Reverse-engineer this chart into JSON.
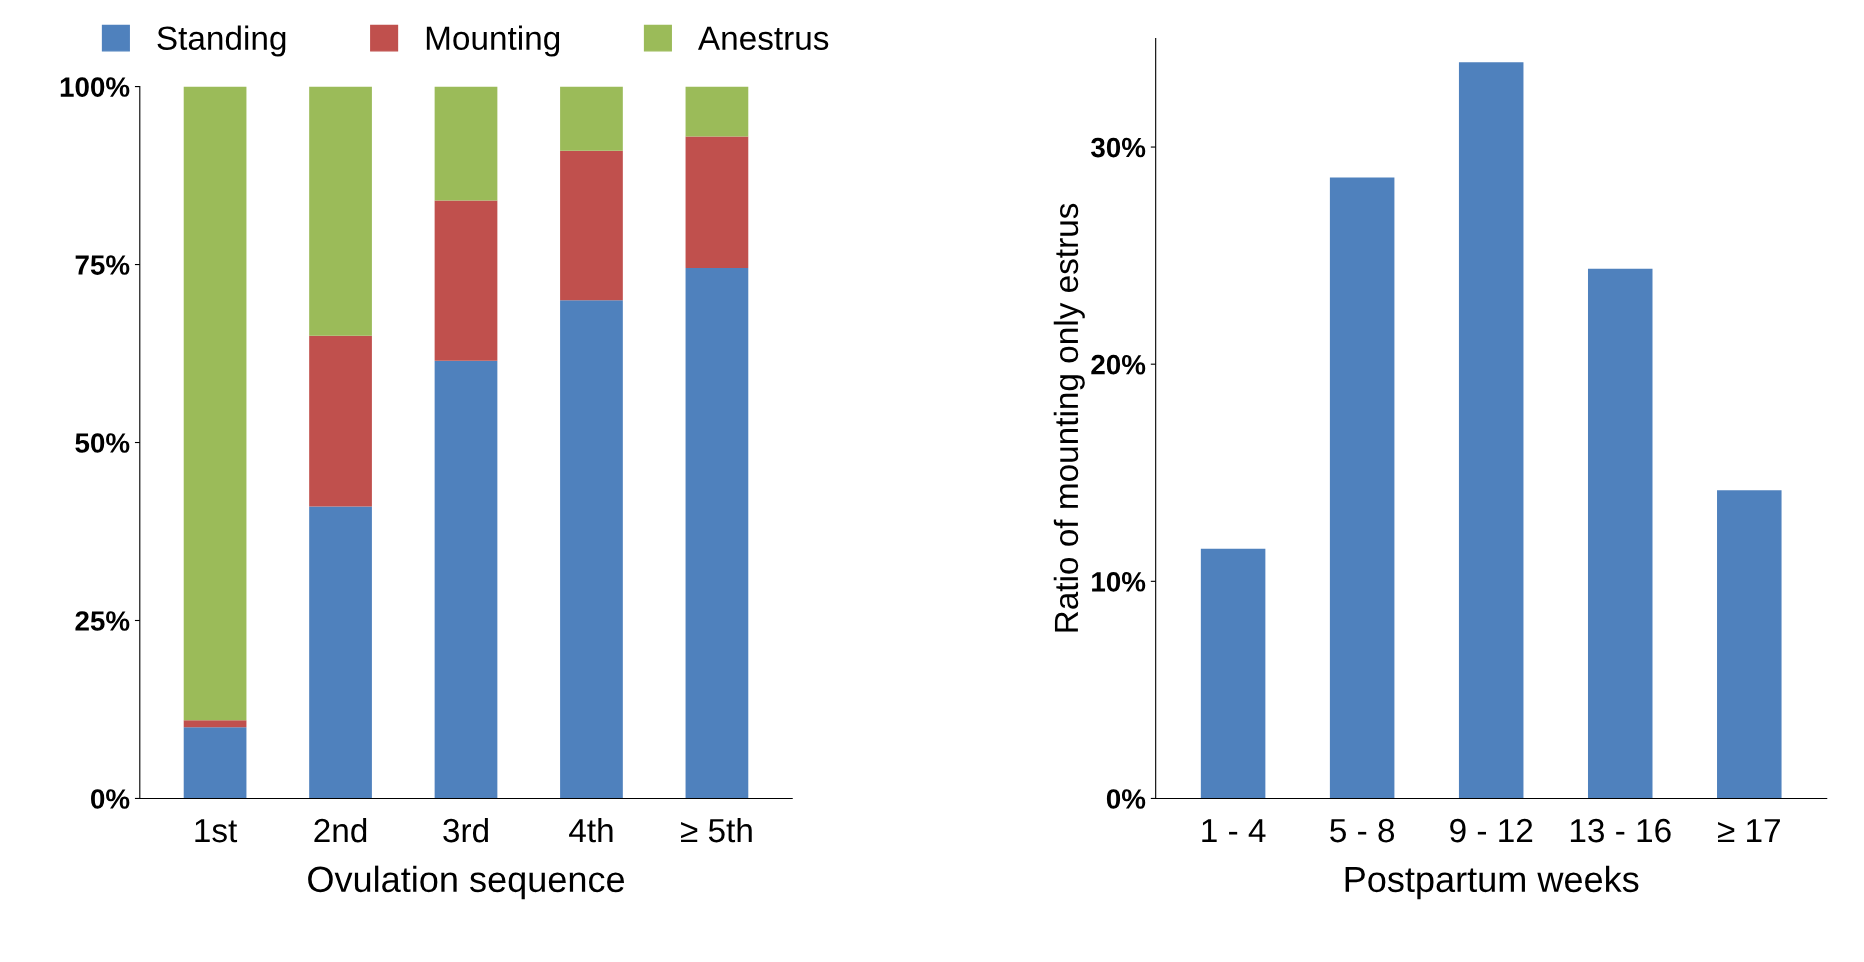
{
  "chart_data": [
    {
      "type": "bar",
      "stacked": true,
      "xlabel": "Ovulation sequence",
      "categories": [
        "1st",
        "2nd",
        "3rd",
        "4th",
        "≥ 5th"
      ],
      "series": [
        {
          "name": "Standing",
          "color": "#4f81bd",
          "values": [
            10,
            41,
            61.5,
            70,
            74.5
          ]
        },
        {
          "name": "Mounting",
          "color": "#c0504d",
          "values": [
            1,
            24,
            22.5,
            21,
            18.5
          ]
        },
        {
          "name": "Anestrus",
          "color": "#9bbb59",
          "values": [
            89,
            35,
            16,
            9,
            7
          ]
        }
      ],
      "ylim": [
        0,
        100
      ],
      "yticks": [
        {
          "value": 0,
          "label": "0%"
        },
        {
          "value": 25,
          "label": "25%"
        },
        {
          "value": 50,
          "label": "50%"
        },
        {
          "value": 75,
          "label": "75%"
        },
        {
          "value": 100,
          "label": "100%"
        }
      ],
      "legend": "top",
      "grid": false
    },
    {
      "type": "bar",
      "xlabel": "Postpartum weeks",
      "ylabel": "Ratio of mounting only estrus",
      "categories": [
        "1 - 4",
        "5 - 8",
        "9 - 12",
        "13 - 16",
        "≥ 17"
      ],
      "series": [
        {
          "color": "#4f81bd",
          "values": [
            11.5,
            28.6,
            33.9,
            24.4,
            14.2
          ]
        }
      ],
      "ylim": [
        0,
        35
      ],
      "yticks": [
        {
          "value": 0,
          "label": "0%"
        },
        {
          "value": 10,
          "label": "10%"
        },
        {
          "value": 20,
          "label": "20%"
        },
        {
          "value": 30,
          "label": "30%"
        }
      ],
      "grid": false
    }
  ]
}
